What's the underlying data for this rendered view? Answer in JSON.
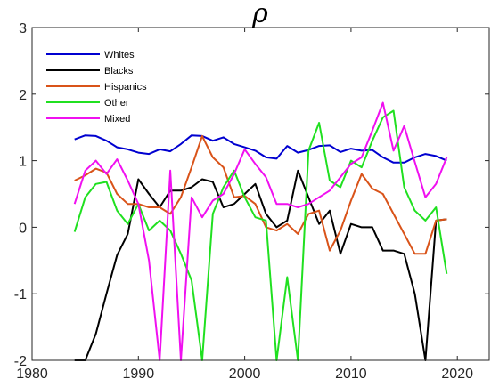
{
  "chart_data": {
    "type": "line",
    "title": "ρ",
    "xlabel": "",
    "ylabel": "",
    "xlim": [
      1980,
      2023
    ],
    "ylim": [
      -2,
      3
    ],
    "xticks": [
      1980,
      1990,
      2000,
      2010,
      2020
    ],
    "yticks": [
      -2,
      -1,
      0,
      1,
      2,
      3
    ],
    "grid": false,
    "legend_position": "top-left",
    "series": [
      {
        "name": "Whites",
        "color": "#0000d0",
        "x": [
          1984,
          1985,
          1986,
          1987,
          1988,
          1989,
          1990,
          1991,
          1992,
          1993,
          1994,
          1995,
          1996,
          1997,
          1998,
          1999,
          2000,
          2001,
          2002,
          2003,
          2004,
          2005,
          2006,
          2007,
          2008,
          2009,
          2010,
          2011,
          2012,
          2013,
          2014,
          2015,
          2016,
          2017,
          2018,
          2019
        ],
        "y": [
          1.32,
          1.38,
          1.37,
          1.3,
          1.2,
          1.17,
          1.12,
          1.1,
          1.17,
          1.14,
          1.25,
          1.38,
          1.37,
          1.3,
          1.35,
          1.25,
          1.2,
          1.15,
          1.05,
          1.03,
          1.22,
          1.12,
          1.16,
          1.22,
          1.23,
          1.13,
          1.18,
          1.15,
          1.16,
          1.05,
          0.97,
          0.97,
          1.05,
          1.1,
          1.07,
          1.0
        ]
      },
      {
        "name": "Blacks",
        "color": "#000000",
        "x": [
          1984,
          1985,
          1986,
          1987,
          1988,
          1989,
          1990,
          1991,
          1992,
          1993,
          1994,
          1995,
          1996,
          1997,
          1998,
          1999,
          2000,
          2001,
          2002,
          2003,
          2004,
          2005,
          2006,
          2007,
          2008,
          2009,
          2010,
          2011,
          2012,
          2013,
          2014,
          2015,
          2016,
          2017,
          2018,
          2019
        ],
        "y": [
          -2.0,
          -2.0,
          -1.6,
          -1.0,
          -0.42,
          -0.1,
          0.72,
          0.5,
          0.3,
          0.55,
          0.55,
          0.6,
          0.72,
          0.68,
          0.3,
          0.35,
          0.5,
          0.65,
          0.2,
          0.0,
          0.1,
          0.85,
          0.45,
          0.05,
          0.25,
          -0.4,
          0.05,
          0.0,
          0.0,
          -0.35,
          -0.35,
          -0.4,
          -1.0,
          -2.0,
          0.1,
          0.12
        ]
      },
      {
        "name": "Hispanics",
        "color": "#d95319",
        "x": [
          1984,
          1985,
          1986,
          1987,
          1988,
          1989,
          1990,
          1991,
          1992,
          1993,
          1994,
          1995,
          1996,
          1997,
          1998,
          1999,
          2000,
          2001,
          2002,
          2003,
          2004,
          2005,
          2006,
          2007,
          2008,
          2009,
          2010,
          2011,
          2012,
          2013,
          2014,
          2015,
          2016,
          2017,
          2018,
          2019
        ],
        "y": [
          0.7,
          0.78,
          0.88,
          0.82,
          0.5,
          0.35,
          0.35,
          0.3,
          0.3,
          0.2,
          0.45,
          0.9,
          1.37,
          1.05,
          0.9,
          0.45,
          0.47,
          0.35,
          0.0,
          -0.05,
          0.05,
          -0.1,
          0.2,
          0.25,
          -0.35,
          -0.05,
          0.4,
          0.8,
          0.58,
          0.5,
          0.2,
          -0.1,
          -0.4,
          -0.4,
          0.1,
          0.12
        ]
      },
      {
        "name": "Other",
        "color": "#20e020",
        "x": [
          1984,
          1985,
          1986,
          1987,
          1988,
          1989,
          1990,
          1991,
          1992,
          1993,
          1994,
          1995,
          1996,
          1997,
          1998,
          1999,
          2000,
          2001,
          2002,
          2003,
          2004,
          2005,
          2006,
          2007,
          2008,
          2009,
          2010,
          2011,
          2012,
          2013,
          2014,
          2015,
          2016,
          2017,
          2018,
          2019
        ],
        "y": [
          -0.07,
          0.45,
          0.65,
          0.68,
          0.25,
          0.05,
          0.35,
          -0.05,
          0.1,
          -0.05,
          -0.4,
          -0.8,
          -2.0,
          0.2,
          0.6,
          0.85,
          0.45,
          0.15,
          0.1,
          -2.0,
          -0.75,
          -2.0,
          1.15,
          1.57,
          0.7,
          0.6,
          1.0,
          0.9,
          1.3,
          1.65,
          1.75,
          0.6,
          0.25,
          0.1,
          0.3,
          -0.7
        ]
      },
      {
        "name": "Mixed",
        "color": "#f010f0",
        "x": [
          1984,
          1985,
          1986,
          1987,
          1988,
          1989,
          1990,
          1991,
          1992,
          1993,
          1994,
          1995,
          1996,
          1997,
          1998,
          1999,
          2000,
          2001,
          2002,
          2003,
          2004,
          2005,
          2006,
          2007,
          2008,
          2009,
          2010,
          2011,
          2012,
          2013,
          2014,
          2015,
          2016,
          2017,
          2018,
          2019
        ],
        "y": [
          0.35,
          0.85,
          1.0,
          0.8,
          1.02,
          0.7,
          0.35,
          -0.5,
          -2.0,
          0.85,
          -2.0,
          0.45,
          0.15,
          0.4,
          0.5,
          0.8,
          1.17,
          0.95,
          0.75,
          0.35,
          0.35,
          0.3,
          0.35,
          0.45,
          0.55,
          0.75,
          0.95,
          1.05,
          1.45,
          1.87,
          1.15,
          1.52,
          0.98,
          0.45,
          0.65,
          1.05
        ]
      }
    ]
  }
}
